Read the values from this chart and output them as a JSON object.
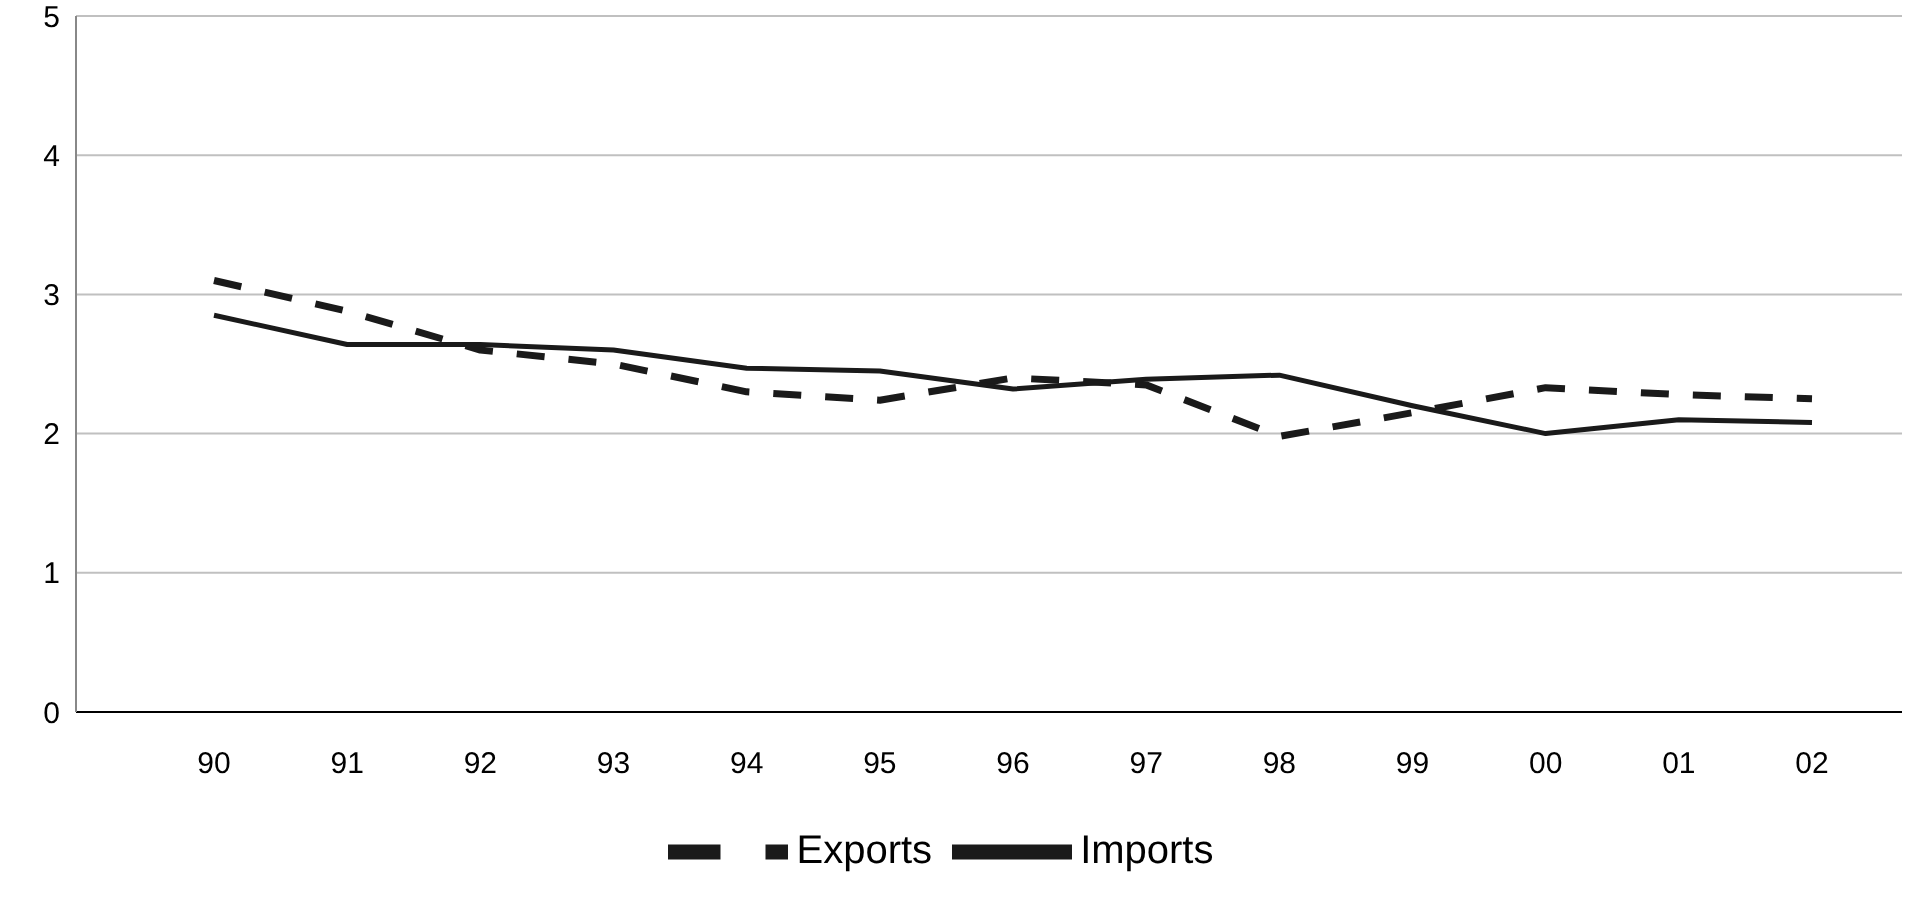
{
  "chart_data": {
    "type": "line",
    "categories": [
      "90",
      "91",
      "92",
      "93",
      "94",
      "95",
      "96",
      "97",
      "98",
      "99",
      "00",
      "01",
      "02"
    ],
    "series": [
      {
        "name": "Exports",
        "color": "#1a1a1a",
        "line_style": "dashed",
        "values": [
          3.1,
          2.88,
          2.6,
          2.5,
          2.3,
          2.24,
          2.4,
          2.35,
          1.98,
          2.15,
          2.33,
          2.28,
          2.25
        ]
      },
      {
        "name": "Imports",
        "color": "#1a1a1a",
        "line_style": "solid",
        "values": [
          2.85,
          2.64,
          2.64,
          2.6,
          2.47,
          2.45,
          2.32,
          2.39,
          2.42,
          2.2,
          2.0,
          2.1,
          2.08
        ]
      }
    ],
    "ylim": [
      0,
      5
    ],
    "yticks": [
      0,
      1,
      2,
      3,
      4,
      5
    ],
    "grid": "y",
    "legend": "bottom",
    "marker": "none"
  }
}
